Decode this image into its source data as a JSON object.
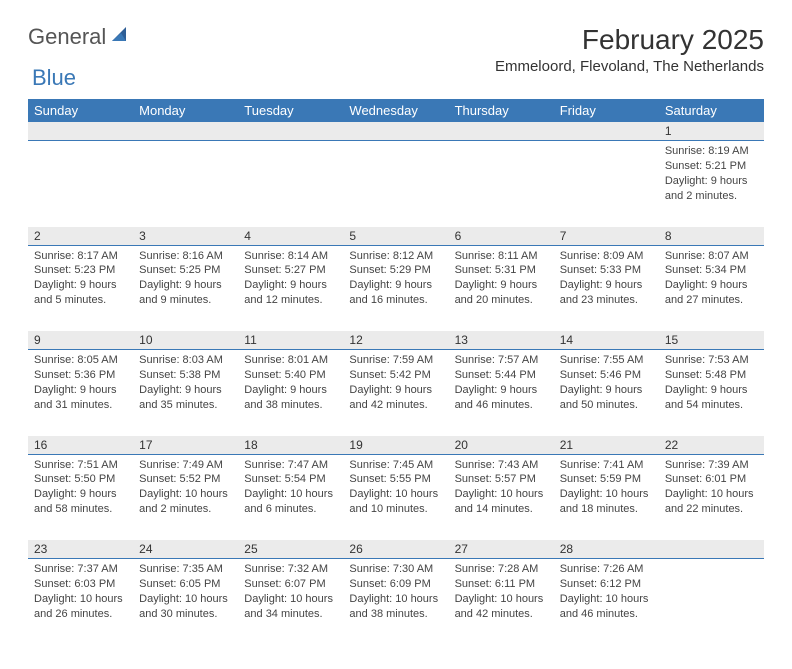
{
  "logo": {
    "general": "General",
    "blue": "Blue"
  },
  "title": "February 2025",
  "subtitle": "Emmeloord, Flevoland, The Netherlands",
  "header_bg": "#3a78b6",
  "daynum_bg": "#ebebeb",
  "days": [
    "Sunday",
    "Monday",
    "Tuesday",
    "Wednesday",
    "Thursday",
    "Friday",
    "Saturday"
  ],
  "weeks": [
    [
      null,
      null,
      null,
      null,
      null,
      null,
      {
        "n": "1",
        "sr": "Sunrise: 8:19 AM",
        "ss": "Sunset: 5:21 PM",
        "dl": "Daylight: 9 hours and 2 minutes."
      }
    ],
    [
      {
        "n": "2",
        "sr": "Sunrise: 8:17 AM",
        "ss": "Sunset: 5:23 PM",
        "dl": "Daylight: 9 hours and 5 minutes."
      },
      {
        "n": "3",
        "sr": "Sunrise: 8:16 AM",
        "ss": "Sunset: 5:25 PM",
        "dl": "Daylight: 9 hours and 9 minutes."
      },
      {
        "n": "4",
        "sr": "Sunrise: 8:14 AM",
        "ss": "Sunset: 5:27 PM",
        "dl": "Daylight: 9 hours and 12 minutes."
      },
      {
        "n": "5",
        "sr": "Sunrise: 8:12 AM",
        "ss": "Sunset: 5:29 PM",
        "dl": "Daylight: 9 hours and 16 minutes."
      },
      {
        "n": "6",
        "sr": "Sunrise: 8:11 AM",
        "ss": "Sunset: 5:31 PM",
        "dl": "Daylight: 9 hours and 20 minutes."
      },
      {
        "n": "7",
        "sr": "Sunrise: 8:09 AM",
        "ss": "Sunset: 5:33 PM",
        "dl": "Daylight: 9 hours and 23 minutes."
      },
      {
        "n": "8",
        "sr": "Sunrise: 8:07 AM",
        "ss": "Sunset: 5:34 PM",
        "dl": "Daylight: 9 hours and 27 minutes."
      }
    ],
    [
      {
        "n": "9",
        "sr": "Sunrise: 8:05 AM",
        "ss": "Sunset: 5:36 PM",
        "dl": "Daylight: 9 hours and 31 minutes."
      },
      {
        "n": "10",
        "sr": "Sunrise: 8:03 AM",
        "ss": "Sunset: 5:38 PM",
        "dl": "Daylight: 9 hours and 35 minutes."
      },
      {
        "n": "11",
        "sr": "Sunrise: 8:01 AM",
        "ss": "Sunset: 5:40 PM",
        "dl": "Daylight: 9 hours and 38 minutes."
      },
      {
        "n": "12",
        "sr": "Sunrise: 7:59 AM",
        "ss": "Sunset: 5:42 PM",
        "dl": "Daylight: 9 hours and 42 minutes."
      },
      {
        "n": "13",
        "sr": "Sunrise: 7:57 AM",
        "ss": "Sunset: 5:44 PM",
        "dl": "Daylight: 9 hours and 46 minutes."
      },
      {
        "n": "14",
        "sr": "Sunrise: 7:55 AM",
        "ss": "Sunset: 5:46 PM",
        "dl": "Daylight: 9 hours and 50 minutes."
      },
      {
        "n": "15",
        "sr": "Sunrise: 7:53 AM",
        "ss": "Sunset: 5:48 PM",
        "dl": "Daylight: 9 hours and 54 minutes."
      }
    ],
    [
      {
        "n": "16",
        "sr": "Sunrise: 7:51 AM",
        "ss": "Sunset: 5:50 PM",
        "dl": "Daylight: 9 hours and 58 minutes."
      },
      {
        "n": "17",
        "sr": "Sunrise: 7:49 AM",
        "ss": "Sunset: 5:52 PM",
        "dl": "Daylight: 10 hours and 2 minutes."
      },
      {
        "n": "18",
        "sr": "Sunrise: 7:47 AM",
        "ss": "Sunset: 5:54 PM",
        "dl": "Daylight: 10 hours and 6 minutes."
      },
      {
        "n": "19",
        "sr": "Sunrise: 7:45 AM",
        "ss": "Sunset: 5:55 PM",
        "dl": "Daylight: 10 hours and 10 minutes."
      },
      {
        "n": "20",
        "sr": "Sunrise: 7:43 AM",
        "ss": "Sunset: 5:57 PM",
        "dl": "Daylight: 10 hours and 14 minutes."
      },
      {
        "n": "21",
        "sr": "Sunrise: 7:41 AM",
        "ss": "Sunset: 5:59 PM",
        "dl": "Daylight: 10 hours and 18 minutes."
      },
      {
        "n": "22",
        "sr": "Sunrise: 7:39 AM",
        "ss": "Sunset: 6:01 PM",
        "dl": "Daylight: 10 hours and 22 minutes."
      }
    ],
    [
      {
        "n": "23",
        "sr": "Sunrise: 7:37 AM",
        "ss": "Sunset: 6:03 PM",
        "dl": "Daylight: 10 hours and 26 minutes."
      },
      {
        "n": "24",
        "sr": "Sunrise: 7:35 AM",
        "ss": "Sunset: 6:05 PM",
        "dl": "Daylight: 10 hours and 30 minutes."
      },
      {
        "n": "25",
        "sr": "Sunrise: 7:32 AM",
        "ss": "Sunset: 6:07 PM",
        "dl": "Daylight: 10 hours and 34 minutes."
      },
      {
        "n": "26",
        "sr": "Sunrise: 7:30 AM",
        "ss": "Sunset: 6:09 PM",
        "dl": "Daylight: 10 hours and 38 minutes."
      },
      {
        "n": "27",
        "sr": "Sunrise: 7:28 AM",
        "ss": "Sunset: 6:11 PM",
        "dl": "Daylight: 10 hours and 42 minutes."
      },
      {
        "n": "28",
        "sr": "Sunrise: 7:26 AM",
        "ss": "Sunset: 6:12 PM",
        "dl": "Daylight: 10 hours and 46 minutes."
      },
      null
    ]
  ]
}
